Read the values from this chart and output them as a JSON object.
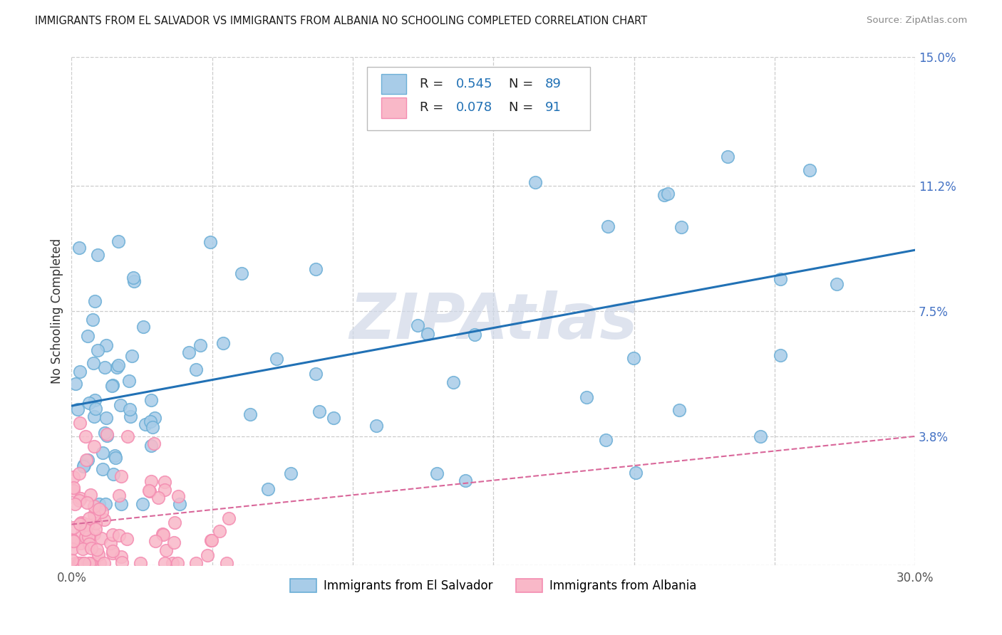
{
  "title": "IMMIGRANTS FROM EL SALVADOR VS IMMIGRANTS FROM ALBANIA NO SCHOOLING COMPLETED CORRELATION CHART",
  "source": "Source: ZipAtlas.com",
  "ylabel": "No Schooling Completed",
  "xlim": [
    0.0,
    0.3
  ],
  "ylim": [
    0.0,
    0.15
  ],
  "xticks": [
    0.0,
    0.05,
    0.1,
    0.15,
    0.2,
    0.25,
    0.3
  ],
  "xticklabels": [
    "0.0%",
    "",
    "",
    "",
    "",
    "",
    "30.0%"
  ],
  "yticks": [
    0.0,
    0.038,
    0.075,
    0.112,
    0.15
  ],
  "yticklabels": [
    "",
    "3.8%",
    "7.5%",
    "11.2%",
    "15.0%"
  ],
  "grid_color": "#cccccc",
  "background_color": "#ffffff",
  "blue_color": "#a8cce8",
  "pink_color": "#f9b8c8",
  "blue_edge": "#6baed6",
  "pink_edge": "#f48cb1",
  "line_blue": "#2171b5",
  "line_pink": "#d9679a",
  "blue_line_y0": 0.047,
  "blue_line_y1": 0.093,
  "pink_line_y0": 0.012,
  "pink_line_y1": 0.038,
  "watermark_text": "ZIPAtlas",
  "watermark_color": "#d0d8e8",
  "legend_text_color_r": "#1a1a2e",
  "legend_text_color_val": "#2171b5"
}
